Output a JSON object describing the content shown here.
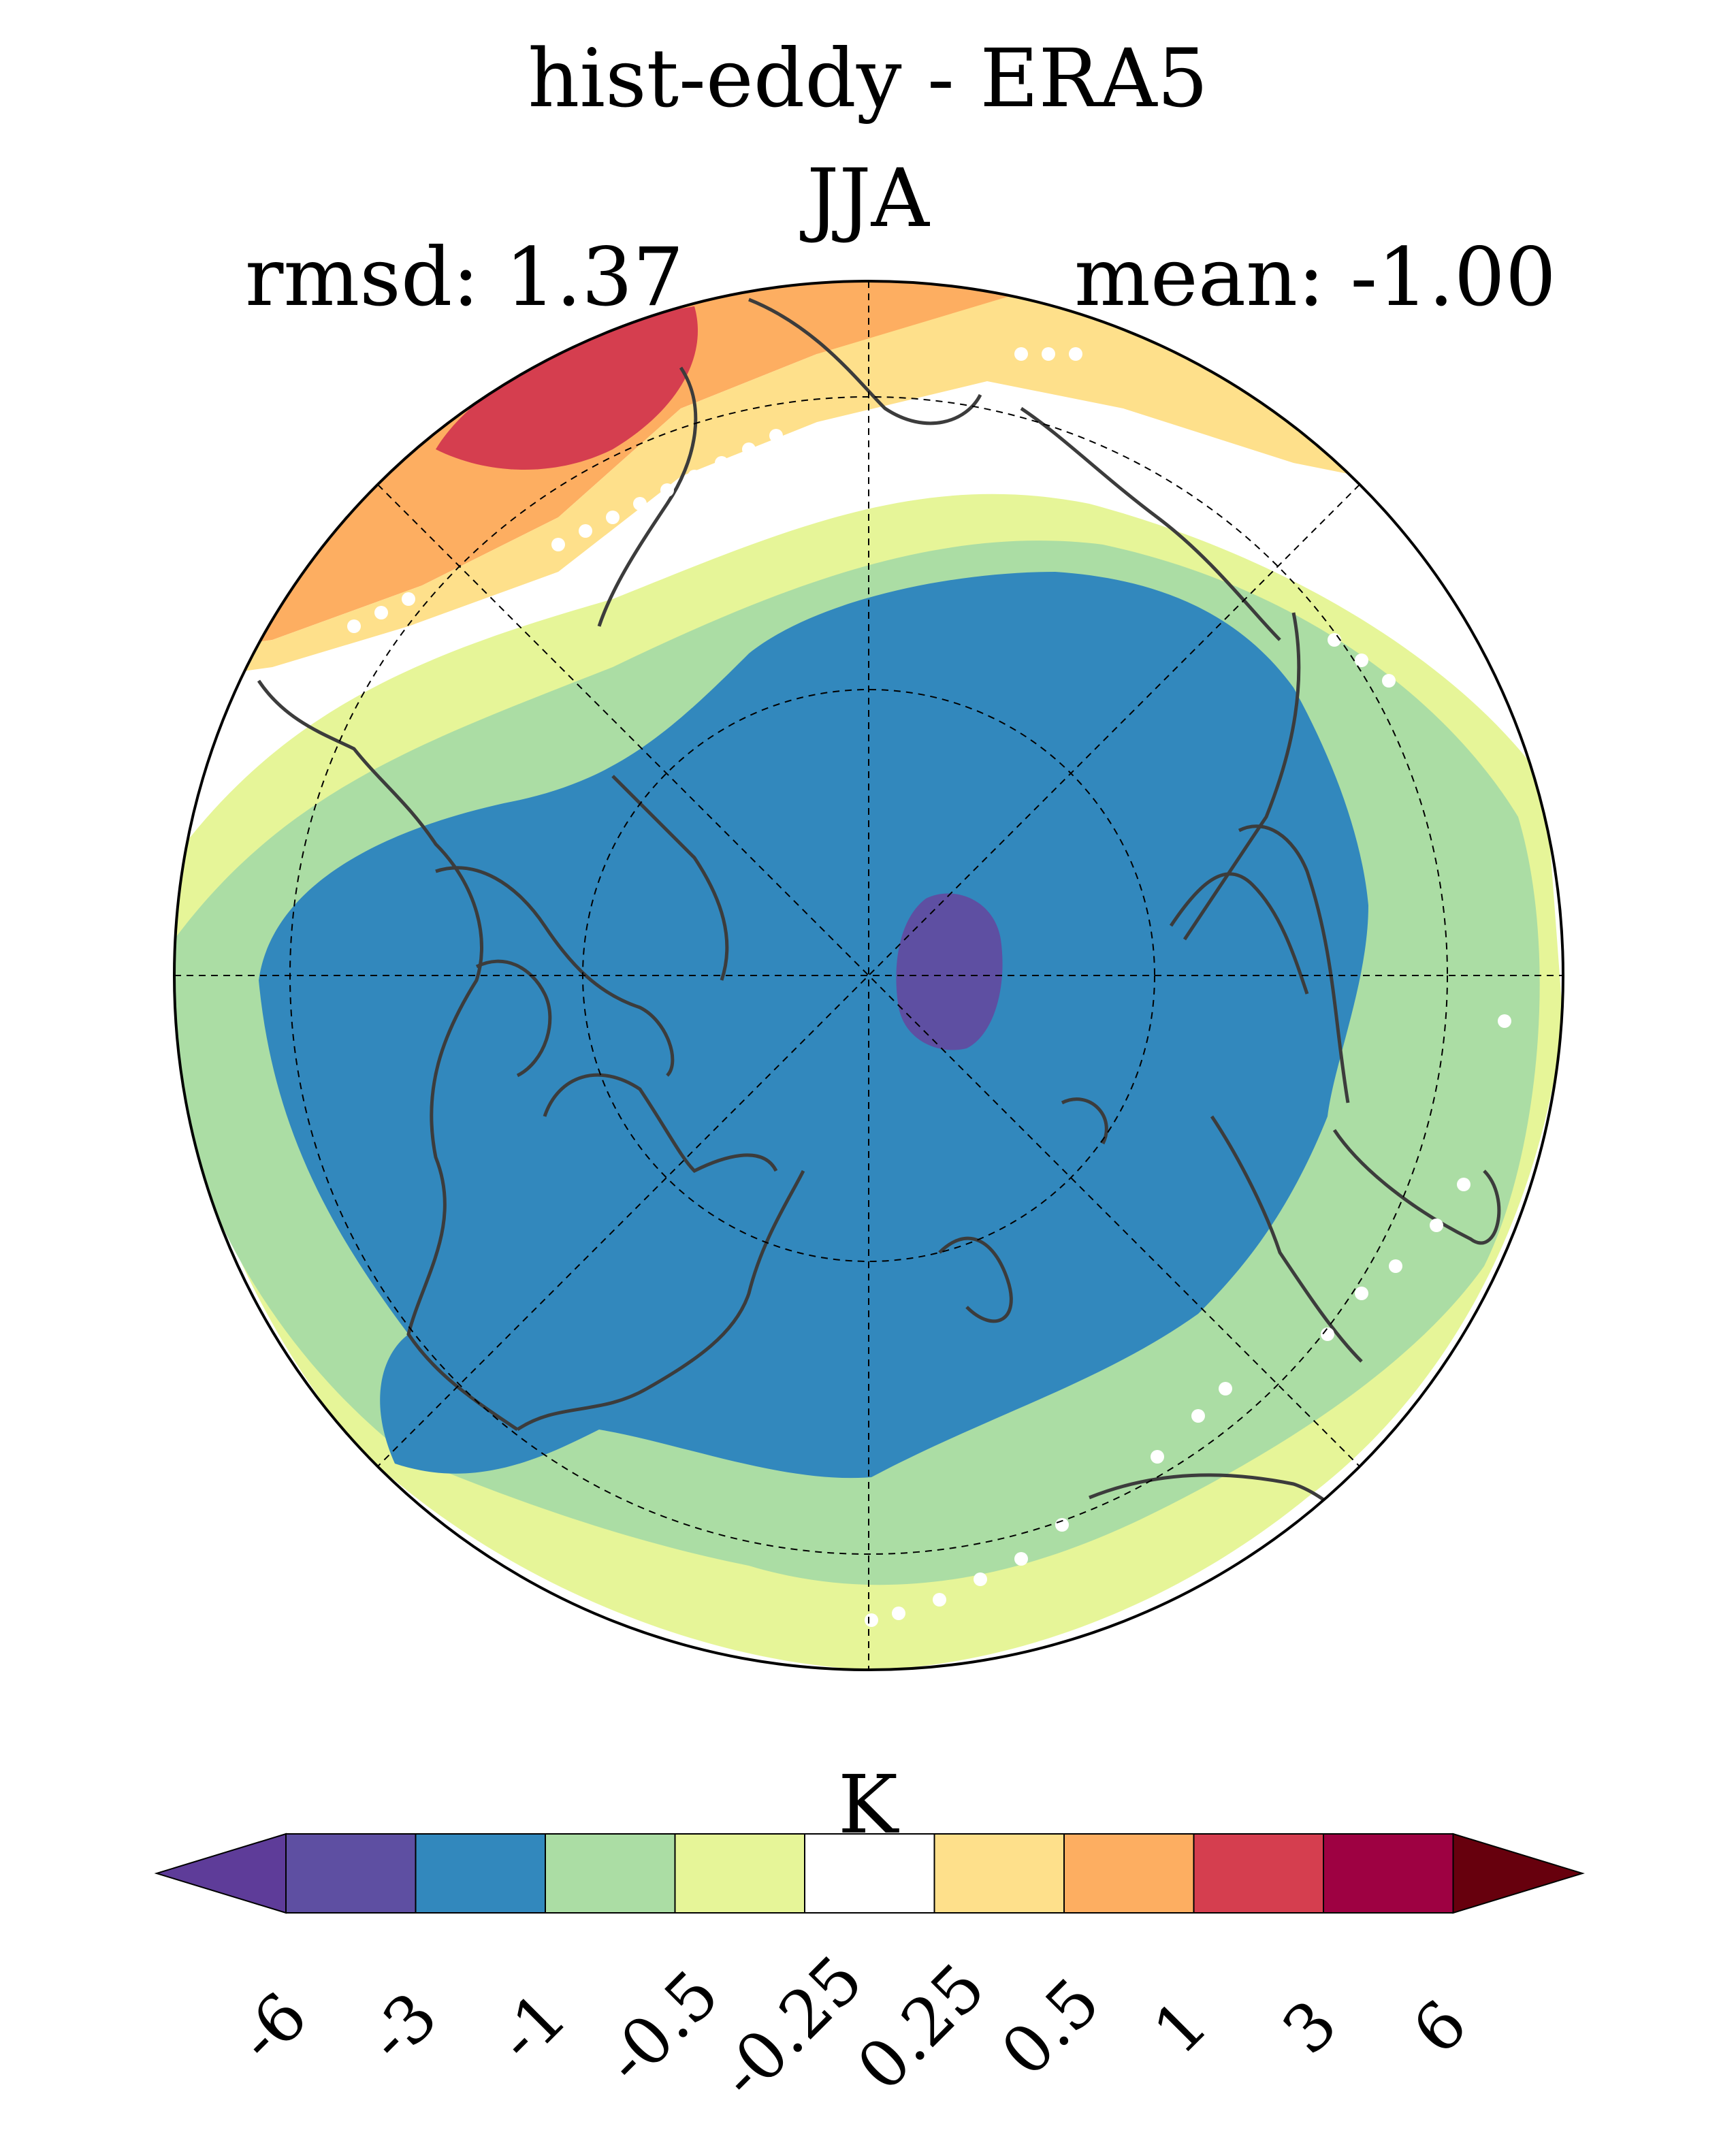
{
  "title": "hist-eddy - ERA5",
  "subtitle": "JJA",
  "stats": {
    "rmsd_label": "rmsd: 1.37",
    "mean_label": "mean: -1.00"
  },
  "map": {
    "projection": "north-polar-stereographic",
    "region_shown": "Northern Hemisphere high latitudes",
    "coastlines_color": "#3c3c3c",
    "gridlines": "dashed",
    "stippling": "white dots"
  },
  "colorbar": {
    "unit": "K",
    "tick_labels": [
      "-6",
      "-3",
      "-1",
      "-0.5",
      "-0.25",
      "0.25",
      "0.5",
      "1",
      "3",
      "6"
    ],
    "colors": [
      "#5e3c99",
      "#5e4fa2",
      "#3288bd",
      "#abdda4",
      "#e6f598",
      "#ffffff",
      "#fee08b",
      "#fdae61",
      "#d53e4f",
      "#9e0142",
      "#67000d"
    ],
    "extend": "both"
  }
}
